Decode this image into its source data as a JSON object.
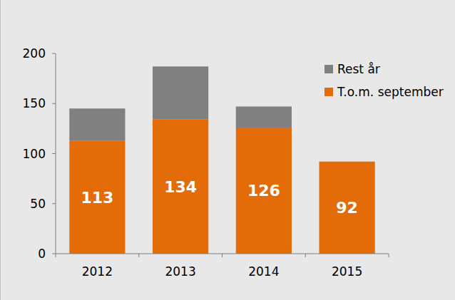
{
  "chart_data": {
    "type": "bar",
    "stacked": true,
    "categories": [
      "2012",
      "2013",
      "2014",
      "2015"
    ],
    "series": [
      {
        "name": "T.o.m. september",
        "color": "#e36c09",
        "values": [
          113,
          134,
          126,
          92
        ],
        "data_labels": true
      },
      {
        "name": "Rest år",
        "color": "#808080",
        "values": [
          32,
          53,
          21,
          null
        ],
        "data_labels": false
      }
    ],
    "ylim": [
      0,
      200
    ],
    "yticks": [
      0,
      50,
      100,
      150,
      200
    ],
    "grid": false,
    "legend": "top-right"
  }
}
